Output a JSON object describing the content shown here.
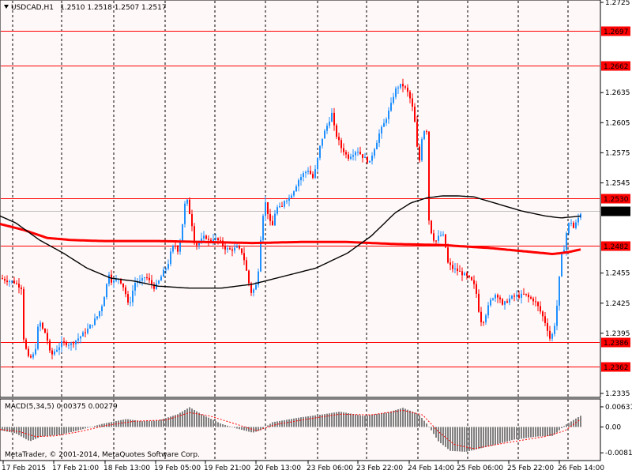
{
  "window": {
    "symbol_label": "USDCAD,H1",
    "ohlc_label": "1.2510 1.2518 1.2507 1.2517",
    "watermark": "MetaTrader, © 2001-2014, MetaQuotes Software Corp."
  },
  "colors": {
    "background": "#fff8f8",
    "frame": "#000000",
    "grid": "#000000",
    "bull": "#1e90ff",
    "bear": "#ff0000",
    "level_line": "#ff0000",
    "ma_fast": "#000000",
    "ma_slow": "#ff0000",
    "macd_hist": "#808080",
    "macd_signal": "#ff0000",
    "price_badge": "#000000"
  },
  "chart_data": {
    "type": "candlestick",
    "timeframe": "H1",
    "price_scale": {
      "ylim": [
        1.2318,
        1.2745
      ],
      "ticks": [
        "1.2725",
        "1.2635",
        "1.2605",
        "1.2545",
        "1.2575",
        "1.2455",
        "1.2425",
        "1.2395",
        "1.2335"
      ]
    },
    "x_labels": [
      "17 Feb 2015",
      "17 Feb 21:00",
      "18 Feb 13:00",
      "19 Feb 05:00",
      "19 Feb 21:00",
      "20 Feb 13:00",
      "23 Feb 06:00",
      "23 Feb 22:00",
      "24 Feb 14:00",
      "25 Feb 06:00",
      "25 Feb 22:00",
      "26 Feb 14:00"
    ],
    "levels": [
      {
        "label": "1.2697",
        "value": 1.2697
      },
      {
        "label": "1.2662",
        "value": 1.2662
      },
      {
        "label": "1.2530",
        "value": 1.253
      },
      {
        "label": "1.2482",
        "value": 1.2482
      },
      {
        "label": "1.2386",
        "value": 1.2386
      },
      {
        "label": "1.2362",
        "value": 1.2362
      }
    ],
    "current_price": {
      "label": "1.2517",
      "value": 1.2517
    },
    "price_anchors": [
      [
        0,
        1.245
      ],
      [
        8,
        1.2448
      ],
      [
        18,
        1.2446
      ],
      [
        28,
        1.244
      ],
      [
        30,
        1.239
      ],
      [
        34,
        1.2375
      ],
      [
        37,
        1.2368
      ],
      [
        40,
        1.2372
      ],
      [
        44,
        1.2374
      ],
      [
        47,
        1.2395
      ],
      [
        50,
        1.241
      ],
      [
        52,
        1.24
      ],
      [
        56,
        1.2398
      ],
      [
        60,
        1.2388
      ],
      [
        63,
        1.2376
      ],
      [
        66,
        1.2374
      ],
      [
        70,
        1.2378
      ],
      [
        74,
        1.2381
      ],
      [
        78,
        1.2385
      ],
      [
        84,
        1.2385
      ],
      [
        90,
        1.2384
      ],
      [
        96,
        1.2388
      ],
      [
        102,
        1.2392
      ],
      [
        110,
        1.2398
      ],
      [
        118,
        1.2406
      ],
      [
        124,
        1.2413
      ],
      [
        130,
        1.2425
      ],
      [
        134,
        1.244
      ],
      [
        138,
        1.2455
      ],
      [
        142,
        1.2445
      ],
      [
        146,
        1.2448
      ],
      [
        150,
        1.245
      ],
      [
        155,
        1.2444
      ],
      [
        160,
        1.2432
      ],
      [
        163,
        1.242
      ],
      [
        167,
        1.2435
      ],
      [
        172,
        1.2448
      ],
      [
        178,
        1.2446
      ],
      [
        184,
        1.2452
      ],
      [
        190,
        1.2446
      ],
      [
        196,
        1.244
      ],
      [
        202,
        1.2448
      ],
      [
        208,
        1.2458
      ],
      [
        212,
        1.2462
      ],
      [
        217,
        1.2478
      ],
      [
        221,
        1.2484
      ],
      [
        225,
        1.2478
      ],
      [
        228,
        1.2488
      ],
      [
        232,
        1.251
      ],
      [
        235,
        1.253
      ],
      [
        238,
        1.2525
      ],
      [
        241,
        1.251
      ],
      [
        244,
        1.25
      ],
      [
        247,
        1.248
      ],
      [
        250,
        1.2485
      ],
      [
        255,
        1.2488
      ],
      [
        260,
        1.2492
      ],
      [
        265,
        1.2486
      ],
      [
        270,
        1.249
      ],
      [
        275,
        1.2488
      ],
      [
        280,
        1.2485
      ],
      [
        285,
        1.248
      ],
      [
        290,
        1.2478
      ],
      [
        300,
        1.248
      ],
      [
        306,
        1.2476
      ],
      [
        310,
        1.2466
      ],
      [
        314,
        1.2448
      ],
      [
        318,
        1.2436
      ],
      [
        323,
        1.244
      ],
      [
        326,
        1.2448
      ],
      [
        329,
        1.248
      ],
      [
        332,
        1.251
      ],
      [
        336,
        1.2525
      ],
      [
        340,
        1.2512
      ],
      [
        344,
        1.2498
      ],
      [
        348,
        1.2515
      ],
      [
        352,
        1.2522
      ],
      [
        356,
        1.2518
      ],
      [
        360,
        1.2528
      ],
      [
        366,
        1.253
      ],
      [
        372,
        1.2538
      ],
      [
        378,
        1.2548
      ],
      [
        384,
        1.2554
      ],
      [
        390,
        1.2558
      ],
      [
        396,
        1.255
      ],
      [
        400,
        1.256
      ],
      [
        404,
        1.2578
      ],
      [
        408,
        1.259
      ],
      [
        412,
        1.2598
      ],
      [
        416,
        1.2606
      ],
      [
        420,
        1.2614
      ],
      [
        424,
        1.2596
      ],
      [
        428,
        1.2588
      ],
      [
        432,
        1.258
      ],
      [
        436,
        1.2576
      ],
      [
        440,
        1.257
      ],
      [
        446,
        1.2574
      ],
      [
        452,
        1.2578
      ],
      [
        458,
        1.2572
      ],
      [
        464,
        1.2568
      ],
      [
        468,
        1.2565
      ],
      [
        472,
        1.2576
      ],
      [
        476,
        1.2584
      ],
      [
        480,
        1.2594
      ],
      [
        486,
        1.2604
      ],
      [
        490,
        1.2612
      ],
      [
        494,
        1.262
      ],
      [
        498,
        1.2632
      ],
      [
        502,
        1.264
      ],
      [
        506,
        1.2642
      ],
      [
        510,
        1.2642
      ],
      [
        514,
        1.2638
      ],
      [
        518,
        1.2632
      ],
      [
        522,
        1.262
      ],
      [
        526,
        1.26
      ],
      [
        530,
        1.256
      ],
      [
        534,
        1.259
      ],
      [
        538,
        1.26
      ],
      [
        541,
        1.2596
      ],
      [
        543,
        1.2508
      ],
      [
        547,
        1.2492
      ],
      [
        551,
        1.2486
      ],
      [
        556,
        1.2492
      ],
      [
        560,
        1.2494
      ],
      [
        563,
        1.2488
      ],
      [
        566,
        1.2466
      ],
      [
        572,
        1.246
      ],
      [
        578,
        1.2458
      ],
      [
        584,
        1.2455
      ],
      [
        590,
        1.2452
      ],
      [
        596,
        1.2448
      ],
      [
        602,
        1.244
      ],
      [
        606,
        1.2418
      ],
      [
        610,
        1.2404
      ],
      [
        614,
        1.2412
      ],
      [
        620,
        1.2426
      ],
      [
        626,
        1.2434
      ],
      [
        632,
        1.2432
      ],
      [
        636,
        1.2422
      ],
      [
        640,
        1.2426
      ],
      [
        646,
        1.243
      ],
      [
        652,
        1.2432
      ],
      [
        658,
        1.2432
      ],
      [
        664,
        1.2434
      ],
      [
        670,
        1.243
      ],
      [
        676,
        1.2428
      ],
      [
        682,
        1.242
      ],
      [
        688,
        1.241
      ],
      [
        692,
        1.2402
      ],
      [
        696,
        1.239
      ],
      [
        700,
        1.2395
      ],
      [
        703,
        1.2408
      ],
      [
        706,
        1.243
      ],
      [
        710,
        1.247
      ],
      [
        714,
        1.248
      ],
      [
        718,
        1.25
      ],
      [
        722,
        1.2508
      ],
      [
        726,
        1.25
      ],
      [
        730,
        1.2506
      ],
      [
        734,
        1.2514
      ],
      [
        737,
        1.2517
      ]
    ],
    "ma_fast_anchors": [
      [
        0,
        1.2512
      ],
      [
        20,
        1.2505
      ],
      [
        50,
        1.2488
      ],
      [
        80,
        1.2475
      ],
      [
        110,
        1.246
      ],
      [
        140,
        1.245
      ],
      [
        170,
        1.2447
      ],
      [
        200,
        1.2442
      ],
      [
        240,
        1.244
      ],
      [
        280,
        1.244
      ],
      [
        320,
        1.2444
      ],
      [
        360,
        1.2452
      ],
      [
        400,
        1.246
      ],
      [
        440,
        1.2475
      ],
      [
        470,
        1.2492
      ],
      [
        500,
        1.2515
      ],
      [
        520,
        1.2525
      ],
      [
        540,
        1.253
      ],
      [
        560,
        1.2532
      ],
      [
        580,
        1.2532
      ],
      [
        600,
        1.2531
      ],
      [
        630,
        1.2524
      ],
      [
        660,
        1.2517
      ],
      [
        690,
        1.2512
      ],
      [
        710,
        1.251
      ],
      [
        737,
        1.2512
      ]
    ],
    "ma_slow_anchors": [
      [
        0,
        1.2504
      ],
      [
        30,
        1.2498
      ],
      [
        60,
        1.249
      ],
      [
        90,
        1.2488
      ],
      [
        130,
        1.2487
      ],
      [
        200,
        1.2487
      ],
      [
        260,
        1.2486
      ],
      [
        320,
        1.2485
      ],
      [
        380,
        1.2486
      ],
      [
        440,
        1.2486
      ],
      [
        500,
        1.2484
      ],
      [
        560,
        1.2483
      ],
      [
        620,
        1.248
      ],
      [
        660,
        1.2477
      ],
      [
        700,
        1.2474
      ],
      [
        720,
        1.2476
      ],
      [
        737,
        1.2479
      ]
    ],
    "macd": {
      "label": "MACD(5,34,5) 0.00375 0.00279",
      "ticks": [
        "0.00631",
        "0.00",
        "-0.0081"
      ],
      "ylim": [
        -0.0088,
        0.0068
      ],
      "hist_anchors": [
        [
          0,
          -0.001
        ],
        [
          20,
          -0.002
        ],
        [
          38,
          -0.0045
        ],
        [
          52,
          -0.003
        ],
        [
          75,
          -0.0025
        ],
        [
          100,
          -0.001
        ],
        [
          130,
          0.001
        ],
        [
          160,
          0.0025
        ],
        [
          180,
          0.0018
        ],
        [
          200,
          0.002
        ],
        [
          225,
          0.004
        ],
        [
          240,
          0.0062
        ],
        [
          255,
          0.004
        ],
        [
          280,
          0.001
        ],
        [
          300,
          -0.0005
        ],
        [
          320,
          -0.0018
        ],
        [
          330,
          -0.001
        ],
        [
          345,
          0.0015
        ],
        [
          380,
          0.003
        ],
        [
          410,
          0.004
        ],
        [
          430,
          0.0048
        ],
        [
          460,
          0.0035
        ],
        [
          490,
          0.0045
        ],
        [
          510,
          0.006
        ],
        [
          530,
          0.004
        ],
        [
          542,
          0.0005
        ],
        [
          555,
          -0.0045
        ],
        [
          570,
          -0.0075
        ],
        [
          590,
          -0.0078
        ],
        [
          620,
          -0.006
        ],
        [
          650,
          -0.004
        ],
        [
          680,
          -0.003
        ],
        [
          700,
          -0.0028
        ],
        [
          715,
          0.0005
        ],
        [
          728,
          0.0025
        ],
        [
          737,
          0.0038
        ]
      ],
      "signal_anchors": [
        [
          0,
          -0.0008
        ],
        [
          25,
          -0.0015
        ],
        [
          45,
          -0.003
        ],
        [
          70,
          -0.0028
        ],
        [
          100,
          -0.0015
        ],
        [
          135,
          0.0005
        ],
        [
          170,
          0.0018
        ],
        [
          210,
          0.0022
        ],
        [
          240,
          0.0045
        ],
        [
          265,
          0.0035
        ],
        [
          300,
          0.0008
        ],
        [
          325,
          -0.0012
        ],
        [
          350,
          0.0008
        ],
        [
          390,
          0.0025
        ],
        [
          430,
          0.004
        ],
        [
          470,
          0.0038
        ],
        [
          510,
          0.0052
        ],
        [
          535,
          0.0038
        ],
        [
          555,
          -0.0015
        ],
        [
          575,
          -0.0055
        ],
        [
          600,
          -0.0068
        ],
        [
          640,
          -0.005
        ],
        [
          690,
          -0.003
        ],
        [
          715,
          -0.0012
        ],
        [
          737,
          0.0028
        ]
      ]
    }
  }
}
